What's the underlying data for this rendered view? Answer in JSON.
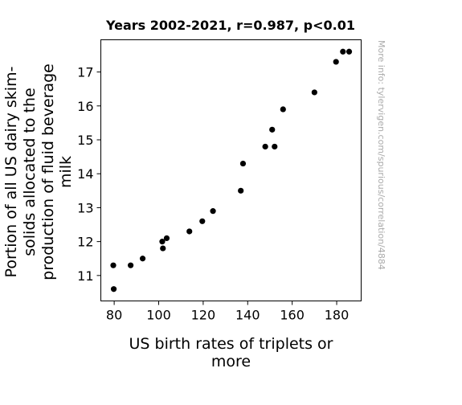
{
  "chart_data": {
    "type": "scatter",
    "title": "Years 2002-2021, r=0.987, p<0.01",
    "xlabel": "US birth rates of triplets or more",
    "ylabel": "Portion of all US dairy skim-solids allocated to the production of fluid beverage milk",
    "xlabel_lines": [
      "US birth rates of triplets or",
      "more"
    ],
    "ylabel_lines": [
      "Portion of all US dairy skim-",
      "solids allocated to the",
      "production of fluid beverage",
      "milk"
    ],
    "watermark": "More info: tylervigen.com/spurious/correlation/4884",
    "xlim": [
      74,
      191
    ],
    "ylim": [
      10.25,
      17.95
    ],
    "xticks": [
      80,
      100,
      120,
      140,
      160,
      180
    ],
    "yticks": [
      11,
      12,
      13,
      14,
      15,
      16,
      17
    ],
    "grid": false,
    "point_color": "#000000",
    "points": [
      {
        "x": 79.6,
        "y": 11.3
      },
      {
        "x": 79.8,
        "y": 10.6
      },
      {
        "x": 87.4,
        "y": 11.3
      },
      {
        "x": 92.8,
        "y": 11.5
      },
      {
        "x": 101.6,
        "y": 12.0
      },
      {
        "x": 101.9,
        "y": 11.8
      },
      {
        "x": 103.6,
        "y": 12.1
      },
      {
        "x": 113.8,
        "y": 12.3
      },
      {
        "x": 119.6,
        "y": 12.6
      },
      {
        "x": 124.4,
        "y": 12.9
      },
      {
        "x": 136.9,
        "y": 13.5
      },
      {
        "x": 137.9,
        "y": 14.3
      },
      {
        "x": 147.9,
        "y": 14.8
      },
      {
        "x": 151.0,
        "y": 15.3
      },
      {
        "x": 152.1,
        "y": 14.8
      },
      {
        "x": 155.9,
        "y": 15.9
      },
      {
        "x": 170.0,
        "y": 16.4
      },
      {
        "x": 179.7,
        "y": 17.3
      },
      {
        "x": 182.8,
        "y": 17.6
      },
      {
        "x": 185.6,
        "y": 17.6
      }
    ]
  }
}
